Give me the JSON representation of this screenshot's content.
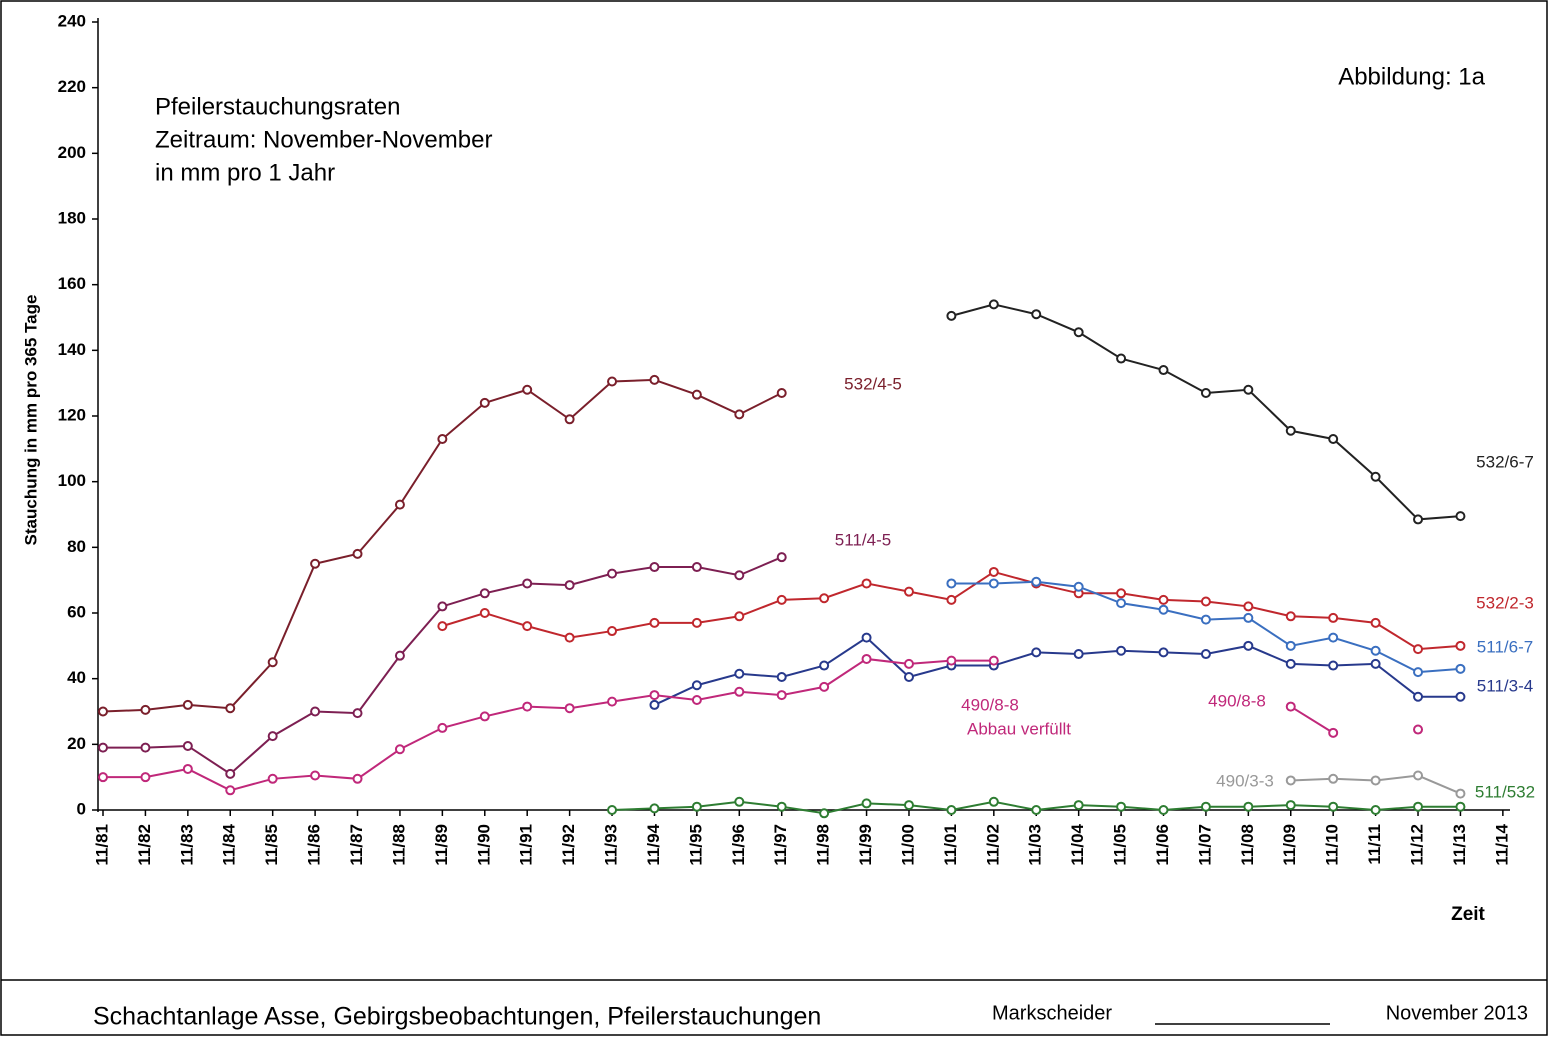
{
  "chart_data": {
    "type": "line",
    "title": [
      "Pfeilerstauchungsraten",
      "Zeitraum: November-November",
      "in mm pro 1 Jahr"
    ],
    "figure_label": "Abbildung:  1a",
    "y_label": "Stauchung in mm pro 365 Tage",
    "x_label": "Zeit",
    "categories": [
      "11/81",
      "11/82",
      "11/83",
      "11/84",
      "11/85",
      "11/86",
      "11/87",
      "11/88",
      "11/89",
      "11/90",
      "11/91",
      "11/92",
      "11/93",
      "11/94",
      "11/95",
      "11/96",
      "11/97",
      "11/98",
      "11/99",
      "11/00",
      "11/01",
      "11/02",
      "11/03",
      "11/04",
      "11/05",
      "11/06",
      "11/07",
      "11/08",
      "11/09",
      "11/10",
      "11/11",
      "11/12",
      "11/13",
      "11/14"
    ],
    "ylim": [
      0,
      240
    ],
    "yticks": [
      0,
      20,
      40,
      60,
      80,
      100,
      120,
      140,
      160,
      180,
      200,
      220,
      240
    ],
    "series": [
      {
        "name": "532/4-5",
        "color": "#7a1f2b",
        "values": [
          30,
          30.5,
          32,
          31,
          45,
          75,
          78,
          93,
          113,
          124,
          128,
          119,
          130.5,
          131,
          126.5,
          120.5,
          127,
          null,
          null,
          null,
          null,
          null,
          null,
          null,
          null,
          null,
          null,
          null,
          null,
          null,
          null,
          null,
          null,
          null
        ]
      },
      {
        "name": "511/4-5",
        "color": "#7d1f52",
        "values": [
          19,
          19,
          19.5,
          11,
          22.5,
          30,
          29.5,
          47,
          62,
          66,
          69,
          68.5,
          72,
          74,
          74,
          71.5,
          77,
          null,
          null,
          null,
          null,
          null,
          null,
          null,
          null,
          null,
          null,
          null,
          null,
          null,
          null,
          null,
          null,
          null
        ]
      },
      {
        "name": "532/2-3",
        "color": "#c0272d",
        "values": [
          null,
          null,
          null,
          null,
          null,
          null,
          null,
          null,
          56,
          60,
          56,
          52.5,
          54.5,
          57,
          57,
          59,
          64,
          64.5,
          69,
          66.5,
          64,
          72.5,
          69,
          66,
          66,
          64,
          63.5,
          62,
          59,
          58.5,
          57,
          49,
          50,
          null
        ]
      },
      {
        "name": "511/6-7",
        "color": "#3a6fc0",
        "values": [
          null,
          null,
          null,
          null,
          null,
          null,
          null,
          null,
          null,
          null,
          null,
          null,
          null,
          null,
          null,
          null,
          null,
          null,
          null,
          null,
          69,
          69,
          69.5,
          68,
          63,
          61,
          58,
          58.5,
          50,
          52.5,
          48.5,
          42,
          43,
          null
        ]
      },
      {
        "name": "511/3-4",
        "color": "#27398c",
        "values": [
          null,
          null,
          null,
          null,
          null,
          null,
          null,
          null,
          null,
          null,
          null,
          null,
          null,
          32,
          38,
          41.5,
          40.5,
          44,
          52.5,
          40.5,
          44,
          44,
          48,
          47.5,
          48.5,
          48,
          47.5,
          50,
          44.5,
          44,
          44.5,
          34.5,
          34.5,
          null
        ]
      },
      {
        "name": "490/8-8",
        "color": "#c0287a",
        "values": [
          10,
          10,
          12.5,
          6,
          9.5,
          10.5,
          9.5,
          18.5,
          25,
          28.5,
          31.5,
          31,
          33,
          35,
          33.5,
          36,
          35,
          37.5,
          46,
          44.5,
          45.5,
          45.5,
          null,
          null,
          null,
          null,
          null,
          null,
          31.5,
          23.5,
          null,
          24.5,
          null,
          null
        ]
      },
      {
        "name": "532/6-7",
        "color": "#222222",
        "values": [
          null,
          null,
          null,
          null,
          null,
          null,
          null,
          null,
          null,
          null,
          null,
          null,
          null,
          null,
          null,
          null,
          null,
          null,
          null,
          null,
          150.5,
          154,
          151,
          145.5,
          137.5,
          134,
          127,
          128,
          115.5,
          113,
          101.5,
          88.5,
          89.5,
          null
        ]
      },
      {
        "name": "490/3-3",
        "color": "#999999",
        "values": [
          null,
          null,
          null,
          null,
          null,
          null,
          null,
          null,
          null,
          null,
          null,
          null,
          null,
          null,
          null,
          null,
          null,
          null,
          null,
          null,
          null,
          null,
          null,
          null,
          null,
          null,
          null,
          null,
          9,
          9.5,
          9,
          10.5,
          5,
          null
        ]
      },
      {
        "name": "511/532",
        "color": "#2e7d32",
        "values": [
          null,
          null,
          null,
          null,
          null,
          null,
          null,
          null,
          null,
          null,
          null,
          null,
          0,
          0.5,
          1,
          2.5,
          1,
          -1,
          2,
          1.5,
          0,
          2.5,
          0,
          1.5,
          1,
          0,
          1,
          1,
          1.5,
          1,
          0,
          1,
          1,
          null
        ]
      }
    ],
    "annotations": [
      "Abbau verfüllt",
      "490/8-8"
    ],
    "footer": {
      "left": "Schachtanlage Asse, Gebirgsbeobachtungen, Pfeilerstauchungen",
      "middle": "Markscheider",
      "right": "November 2013"
    }
  }
}
